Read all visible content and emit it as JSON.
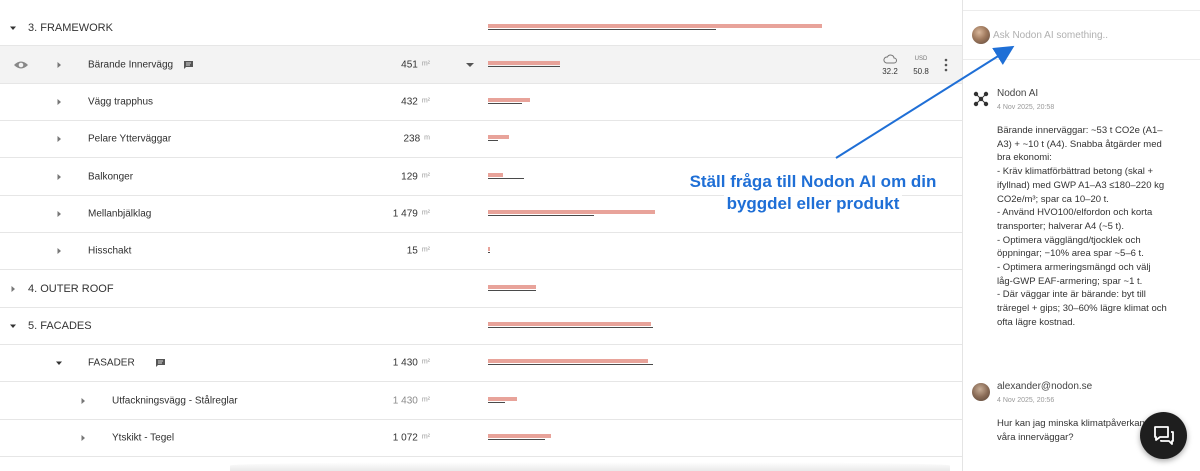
{
  "table": {
    "rows": [
      {
        "level": "group",
        "name": "3. FRAMEWORK",
        "expanded": true,
        "bar": 0.88,
        "line": 0.6
      },
      {
        "level": "item",
        "name": "Bärande Innervägg",
        "qty": "451",
        "unit": "m²",
        "selected": true,
        "has_comment": true,
        "bar": 0.19,
        "line": 0.19,
        "climate": "32.2",
        "cost_label": "USD",
        "cost": "50.8"
      },
      {
        "level": "item",
        "name": "Vägg trapphus",
        "qty": "432",
        "unit": "m²",
        "bar": 0.11,
        "line": 0.09
      },
      {
        "level": "item",
        "name": "Pelare Ytterväggar",
        "qty": "238",
        "unit": "m",
        "bar": 0.055,
        "line": 0.025
      },
      {
        "level": "item",
        "name": "Balkonger",
        "qty": "129",
        "unit": "m²",
        "bar": 0.04,
        "line": 0.095
      },
      {
        "level": "item",
        "name": "Mellanbjälklag",
        "qty": "1 479",
        "unit": "m²",
        "bar": 0.44,
        "line": 0.28
      },
      {
        "level": "item",
        "name": "Hisschakt",
        "qty": "15",
        "unit": "m²",
        "bar": 0.004,
        "line": 0.004
      },
      {
        "level": "group",
        "name": "4. OUTER ROOF",
        "expanded": false,
        "bar": 0.125,
        "line": 0.125
      },
      {
        "level": "group",
        "name": "5. FACADES",
        "expanded": true,
        "bar": 0.43,
        "line": 0.435
      },
      {
        "level": "item",
        "name": "FASADER",
        "qty": "1 430",
        "unit": "m²",
        "has_comment": true,
        "expanded": true,
        "bar": 0.42,
        "line": 0.435
      },
      {
        "level": "sub",
        "name": "Utfackningsvägg - Stålreglar",
        "qty": "1 430",
        "unit": "m²",
        "muted": true,
        "bar": 0.075,
        "line": 0.045
      },
      {
        "level": "sub",
        "name": "Ytskikt - Tegel",
        "qty": "1 072",
        "unit": "m²",
        "bar": 0.165,
        "line": 0.15
      }
    ]
  },
  "panel": {
    "ask_placeholder": "Ask Nodon AI something..",
    "messages": [
      {
        "author": "Nodon AI",
        "time": "4 Nov 2025, 20:58",
        "avatar_icon": "nodon-logo-icon",
        "lines": [
          "Bärande innerväggar: ~53 t CO2e (A1–",
          "A3) + ~10 t (A4). Snabba åtgärder med",
          "bra ekonomi:",
          "- Kräv klimatförbättrad betong (skal +",
          "ifyllnad) med GWP A1–A3 ≤180–220 kg",
          "CO2e/m³; spar ca 10–20 t.",
          "- Använd HVO100/elfordon och korta",
          "transporter; halverar A4 (~5 t).",
          "- Optimera vägglängd/tjocklek och",
          "öppningar; −10% area spar ~5–6 t.",
          "- Optimera armeringsmängd och välj",
          "låg-GWP EAF-armering; spar ~1 t.",
          "- Där väggar inte är bärande: byt till",
          "träregel + gips; 30–60% lägre klimat och",
          "ofta lägre kostnad."
        ]
      },
      {
        "author": "alexander@nodon.se",
        "time": "4 Nov 2025, 20:56",
        "avatar_icon": "user-avatar",
        "lines": [
          "Hur kan jag minska klimatpåverkan för",
          "våra innerväggar?"
        ]
      }
    ]
  },
  "annotation": {
    "lines": [
      "Ställ fråga till Nodon AI om din",
      "byggdel eller produkt"
    ],
    "color": "#1f6fd6"
  },
  "colors": {
    "bar": "#e8a39a",
    "bar_line": "#4a4a4a",
    "accent": "#1f6fd6"
  },
  "fab": {
    "icon": "chat-bubbles-icon"
  }
}
